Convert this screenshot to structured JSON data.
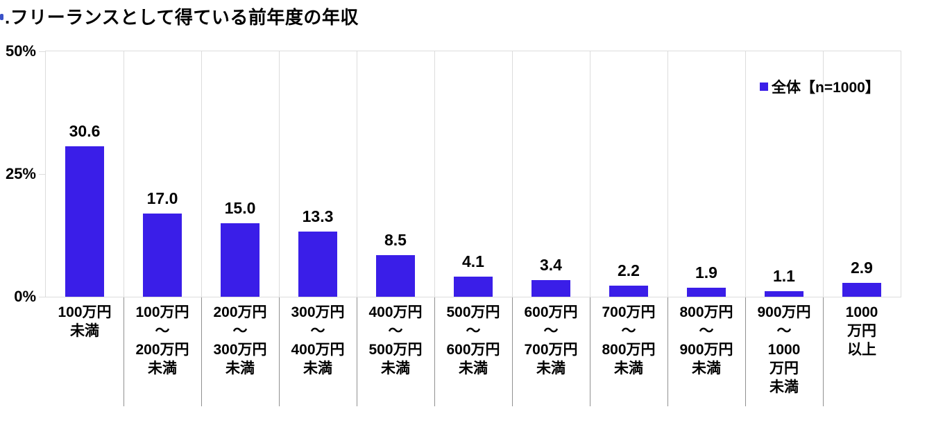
{
  "title": ".フリーランスとして得ている前年度の年収",
  "legend": {
    "label": "全体【n=1000】"
  },
  "colors": {
    "bar": "#3a1ee8",
    "axis_line": "#dcdcdc",
    "below_axis_separator": "#909090",
    "title_fragment": "#3a52c8",
    "text": "#000000"
  },
  "chart_data": {
    "type": "bar",
    "title": "フリーランスとして得ている前年度の年収",
    "categories": [
      "100万円\n未満",
      "100万円\n～\n200万円\n未満",
      "200万円\n～\n300万円\n未満",
      "300万円\n～\n400万円\n未満",
      "400万円\n～\n500万円\n未満",
      "500万円\n～\n600万円\n未満",
      "600万円\n～\n700万円\n未満",
      "700万円\n～\n800万円\n未満",
      "800万円\n～\n900万円\n未満",
      "900万円\n～\n1000\n万円\n未満",
      "1000\n万円\n以上"
    ],
    "values": [
      30.6,
      17.0,
      15.0,
      13.3,
      8.5,
      4.1,
      3.4,
      2.2,
      1.9,
      1.1,
      2.9
    ],
    "value_labels": [
      "30.6",
      "17.0",
      "15.0",
      "13.3",
      "8.5",
      "4.1",
      "3.4",
      "2.2",
      "1.9",
      "1.1",
      "2.9"
    ],
    "unit": "%",
    "ylim": [
      0,
      50
    ],
    "ytick_labels": [
      "50%",
      "25%",
      "0%"
    ],
    "legend_entries": [
      "全体【n=1000】"
    ],
    "legend_position": "top-right",
    "grid": "vertical-category-separators"
  }
}
